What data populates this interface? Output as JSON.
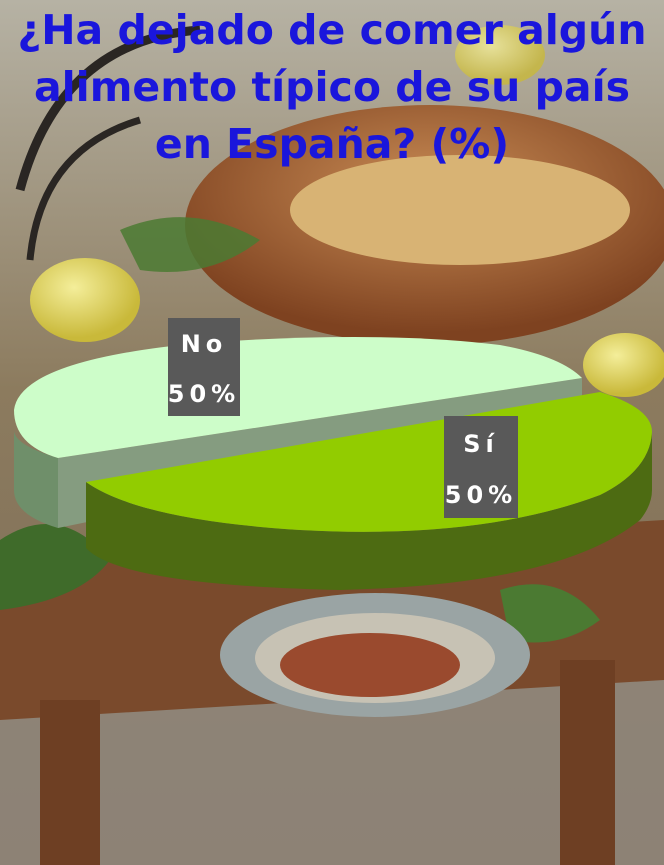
{
  "chart_data": {
    "type": "pie",
    "style": "3d-exploded",
    "title_lines": [
      "¿Ha dejado de comer algún",
      "alimento típico de su país",
      "en España? (%)"
    ],
    "slices": [
      {
        "label": "No",
        "value": 50,
        "value_text": "50%",
        "color": "#cdfdc9",
        "side_color": "#6f8f6a"
      },
      {
        "label": "Sí",
        "value": 50,
        "value_text": "50%",
        "color": "#92cc00",
        "side_color": "#4d6b12"
      }
    ],
    "label_box_color": "#595959",
    "label_text_color": "#ffffff"
  },
  "colors": {
    "title": "#1a16dc",
    "background_scene": "photo-rustic-table-food"
  }
}
